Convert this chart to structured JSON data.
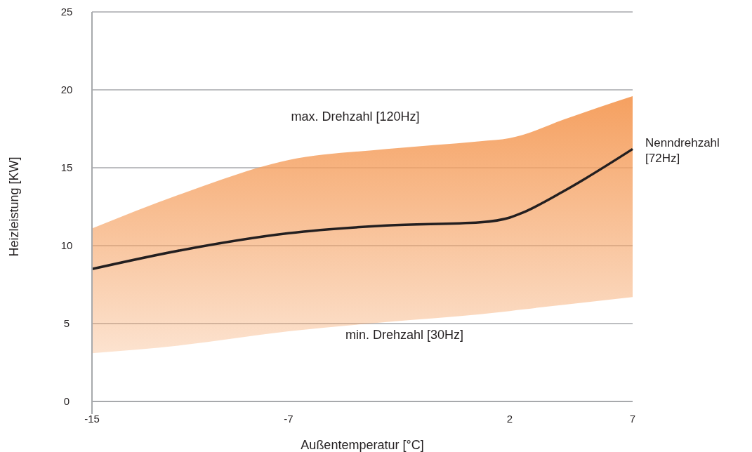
{
  "chart_data": {
    "type": "line",
    "xlabel": "Außentemperatur [°C]",
    "ylabel": "Heizleistung [KW]",
    "x": [
      -15,
      -11.4,
      -7,
      -3,
      0.8,
      2,
      2.5,
      4.2,
      7
    ],
    "series": [
      {
        "name": "Nenndrehzahl [72Hz]",
        "color": "#231f20",
        "values": [
          8.5,
          9.7,
          10.8,
          11.3,
          11.5,
          11.8,
          12.1,
          13.5,
          16.2
        ],
        "lower": [
          3.1,
          3.6,
          4.5,
          5.1,
          5.6,
          5.8,
          5.9,
          6.2,
          6.7
        ],
        "upper": [
          11.1,
          13.3,
          15.5,
          16.2,
          16.7,
          16.9,
          17.1,
          18.1,
          19.6
        ]
      }
    ],
    "annotations": [
      "max. Drehzahl [120Hz]",
      "min. Drehzahl [30Hz]"
    ],
    "xlim": [
      -15,
      7
    ],
    "xticks": [
      -15,
      -7,
      2,
      7
    ],
    "ylim": [
      0,
      25
    ],
    "yticks": [
      0,
      5,
      10,
      15,
      20,
      25
    ],
    "grid": "y",
    "line_style": "solid",
    "marker": "none"
  }
}
